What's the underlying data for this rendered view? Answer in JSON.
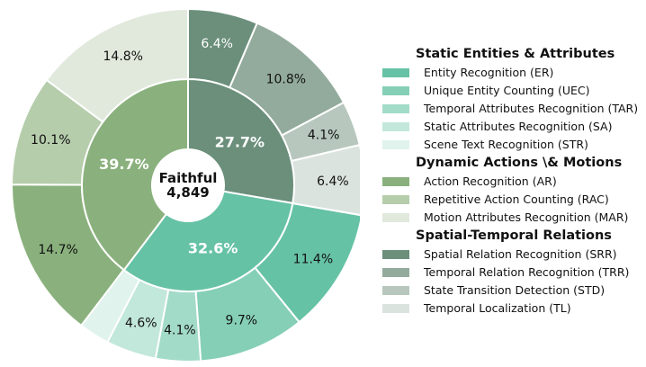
{
  "chart_data": {
    "type": "pie",
    "center_label": {
      "title": "Faithful",
      "count": "4,849"
    },
    "inner": [
      {
        "name": "Static Entities & Attributes",
        "label": "32.6%",
        "value": 32.6,
        "color": "#66c2a5"
      },
      {
        "name": "Spatial-Temporal Relations",
        "label": "27.7%",
        "value": 27.7,
        "color": "#6b8f7b"
      },
      {
        "name": "Dynamic Actions \\& Motions",
        "label": "39.7%",
        "value": 39.7,
        "color": "#8ab17d"
      }
    ],
    "outer": [
      {
        "name": "Spatial Relation Recognition (SRR)",
        "value": 6.4,
        "label": "6.4%",
        "color": "#6b8f7b",
        "text_color": "#ffffff"
      },
      {
        "name": "Temporal Relation Recognition (TRR)",
        "value": 10.8,
        "label": "10.8%",
        "color": "#93ab9c",
        "text_color": "#111111"
      },
      {
        "name": "State Transition Detection (STD)",
        "value": 4.1,
        "label": "4.1%",
        "color": "#b7c7bd",
        "text_color": "#111111"
      },
      {
        "name": "Temporal Localization (TL)",
        "value": 6.4,
        "label": "6.4%",
        "color": "#dbe3de",
        "text_color": "#111111"
      },
      {
        "name": "Entity Recognition (ER)",
        "value": 11.4,
        "label": "11.4%",
        "color": "#66c2a5",
        "text_color": "#111111"
      },
      {
        "name": "Unique Entity Counting (UEC)",
        "value": 9.7,
        "label": "9.7%",
        "color": "#85cfb7",
        "text_color": "#111111"
      },
      {
        "name": "Temporal Attributes Recognition (TAR)",
        "value": 4.1,
        "label": "4.1%",
        "color": "#a3dbc9",
        "text_color": "#111111"
      },
      {
        "name": "Static Attributes Recognition (SA)",
        "value": 4.6,
        "label": "4.6%",
        "color": "#c2e7db",
        "text_color": "#111111"
      },
      {
        "name": "Scene Text Recognition (STR)",
        "value": 2.8,
        "label": "",
        "color": "#e0f3ed",
        "text_color": "#111111"
      },
      {
        "name": "Action Recognition (AR)",
        "value": 14.7,
        "label": "14.7%",
        "color": "#8ab17d",
        "text_color": "#111111"
      },
      {
        "name": "Repetitive Action Counting (RAC)",
        "value": 10.1,
        "label": "10.1%",
        "color": "#b5cdab",
        "text_color": "#111111"
      },
      {
        "name": "Motion Attributes Recognition (MAR)",
        "value": 14.8,
        "label": "14.8%",
        "color": "#e1e9dc",
        "text_color": "#111111"
      }
    ],
    "legend": [
      {
        "title": "Static Entities & Attributes",
        "items": [
          {
            "label": "Entity Recognition (ER)",
            "color": "#66c2a5"
          },
          {
            "label": "Unique Entity Counting (UEC)",
            "color": "#85cfb7"
          },
          {
            "label": "Temporal Attributes Recognition (TAR)",
            "color": "#a3dbc9"
          },
          {
            "label": "Static Attributes Recognition (SA)",
            "color": "#c2e7db"
          },
          {
            "label": "Scene Text Recognition (STR)",
            "color": "#e0f3ed"
          }
        ]
      },
      {
        "title": "Dynamic Actions \\& Motions",
        "items": [
          {
            "label": "Action Recognition (AR)",
            "color": "#8ab17d"
          },
          {
            "label": "Repetitive Action Counting (RAC)",
            "color": "#b5cdab"
          },
          {
            "label": "Motion Attributes Recognition (MAR)",
            "color": "#e1e9dc"
          }
        ]
      },
      {
        "title": "Spatial-Temporal Relations",
        "items": [
          {
            "label": "Spatial Relation Recognition (SRR)",
            "color": "#6b8f7b"
          },
          {
            "label": "Temporal Relation Recognition (TRR)",
            "color": "#93ab9c"
          },
          {
            "label": "State Transition Detection (STD)",
            "color": "#b7c7bd"
          },
          {
            "label": "Temporal Localization (TL)",
            "color": "#dbe3de"
          }
        ]
      }
    ]
  }
}
